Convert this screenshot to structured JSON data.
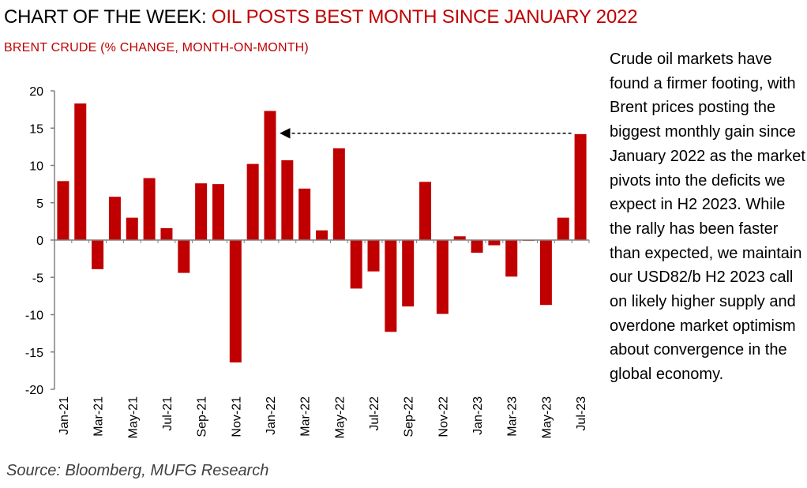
{
  "header": {
    "title_prefix": "CHART OF THE WEEK: ",
    "title_highlight": "OIL POSTS BEST MONTH SINCE JANUARY 2022"
  },
  "colors": {
    "bar": "#c00000",
    "accent_text": "#c00000",
    "axis": "#808080",
    "arrow": "#000000"
  },
  "commentary": "Crude oil markets have found a firmer footing, with Brent prices posting the biggest monthly gain since January 2022 as the market pivots into the deficits we expect in H2 2023. While the rally has been faster than expected, we maintain our USD82/b H2 2023 call on likely higher supply and overdone market optimism about convergence in the global economy.",
  "source": "Source: Bloomberg, MUFG Research",
  "chart_data": {
    "type": "bar",
    "title": "",
    "subtitle": "BRENT CRUDE (% CHANGE, MONTH-ON-MONTH)",
    "xlabel": "",
    "ylabel": "",
    "ylim": [
      -20,
      20
    ],
    "yticks": [
      20,
      15,
      10,
      5,
      0,
      -5,
      -10,
      -15,
      -20
    ],
    "grid": false,
    "legend": "none",
    "categories": [
      "Jan-21",
      "Feb-21",
      "Mar-21",
      "Apr-21",
      "May-21",
      "Jun-21",
      "Jul-21",
      "Aug-21",
      "Sep-21",
      "Oct-21",
      "Nov-21",
      "Dec-21",
      "Jan-22",
      "Feb-22",
      "Mar-22",
      "Apr-22",
      "May-22",
      "Jun-22",
      "Jul-22",
      "Aug-22",
      "Sep-22",
      "Oct-22",
      "Nov-22",
      "Dec-22",
      "Jan-23",
      "Feb-23",
      "Mar-23",
      "Apr-23",
      "May-23",
      "Jun-23",
      "Jul-23"
    ],
    "tick_labels": [
      "Jan-21",
      "Mar-21",
      "May-21",
      "Jul-21",
      "Sep-21",
      "Nov-21",
      "Jan-22",
      "Mar-22",
      "May-22",
      "Jul-22",
      "Sep-22",
      "Nov-22",
      "Jan-23",
      "Mar-23",
      "May-23",
      "Jul-23"
    ],
    "values": [
      7.9,
      18.3,
      -3.9,
      5.8,
      3.0,
      8.3,
      1.6,
      -4.4,
      7.6,
      7.5,
      -16.4,
      10.2,
      17.3,
      10.7,
      6.9,
      1.3,
      12.3,
      -6.5,
      -4.2,
      -12.3,
      -8.9,
      7.8,
      -9.9,
      0.5,
      -1.7,
      -0.7,
      -4.9,
      -0.1,
      -8.7,
      3.0,
      14.2
    ],
    "annotations": [
      {
        "type": "dashed-arrow",
        "from_category": "Jul-23",
        "to_category": "Jan-22",
        "y": 14.2
      }
    ]
  }
}
